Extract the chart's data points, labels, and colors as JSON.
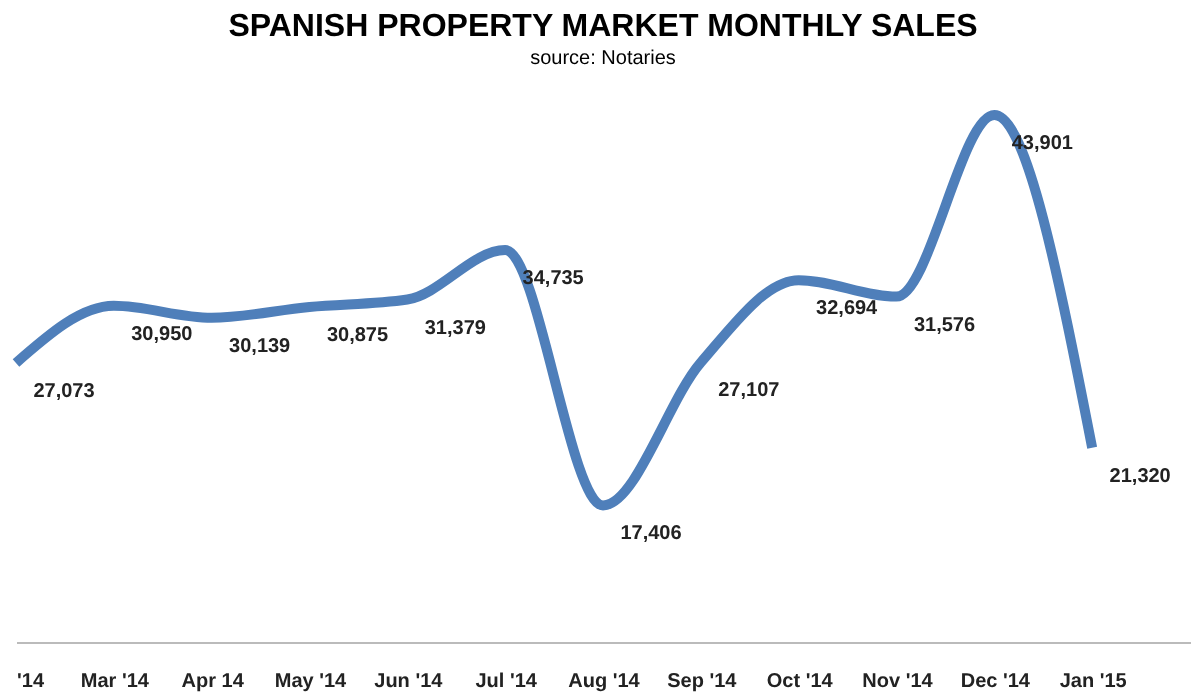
{
  "chart_data": {
    "type": "line",
    "title": "SPANISH PROPERTY MARKET MONTHLY SALES",
    "subtitle": "source: Notaries",
    "categories": [
      "'14",
      "Mar '14",
      "Apr 14",
      "May '14",
      "Jun '14",
      "Jul '14",
      "Aug '14",
      "Sep '14",
      "Oct '14",
      "Nov '14",
      "Dec '14",
      "Jan '15"
    ],
    "series": [
      {
        "color": "#4f7fba",
        "values": [
          27073,
          30950,
          30139,
          30875,
          31379,
          34735,
          17406,
          27107,
          32694,
          31576,
          43901,
          21320
        ],
        "value_labels": [
          "27,073",
          "30,950",
          "30,139",
          "30,875",
          "31,379",
          "34,735",
          "17,406",
          "27,107",
          "32,694",
          "31,576",
          "43,901",
          "21,320"
        ]
      }
    ],
    "grid": false,
    "marker": "none",
    "line_style": "solid",
    "tick_labels": "x"
  }
}
